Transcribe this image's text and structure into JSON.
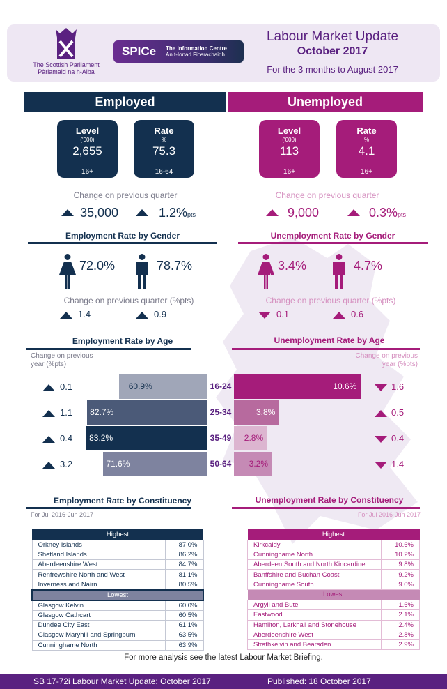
{
  "header": {
    "org_line1": "The Scottish Parliament",
    "org_line2": "Pàrlamaid na h-Alba",
    "spice_logo": "SPICe",
    "spice_line1": "The Information Centre",
    "spice_line2": "An t-Ionad Fiosrachaidh",
    "title": "Labour Market Update",
    "date": "October 2017",
    "period": "For the 3 months to August 2017"
  },
  "colors": {
    "navy": "#13304f",
    "magenta": "#a51c7a",
    "purple": "#5a2180",
    "header_bg": "#eee7f3"
  },
  "employed": {
    "heading": "Employed",
    "level": {
      "title": "Level",
      "unit": "('000)",
      "value": "2,655",
      "age": "16+"
    },
    "rate": {
      "title": "Rate",
      "unit": "%",
      "value": "75.3",
      "age": "16-64"
    },
    "change_label": "Change on previous quarter",
    "change_level": "35,000",
    "change_level_dir": "up",
    "change_rate": "1.2%",
    "change_rate_dir": "up",
    "pts": "pts",
    "gender_title": "Employment Rate by Gender",
    "female": "72.0%",
    "male": "78.7%",
    "gender_change_label": "Change on previous quarter (%pts)",
    "female_change": "1.4",
    "female_dir": "up",
    "male_change": "0.9",
    "male_dir": "up"
  },
  "unemployed": {
    "heading": "Unemployed",
    "level": {
      "title": "Level",
      "unit": "('000)",
      "value": "113",
      "age": "16+"
    },
    "rate": {
      "title": "Rate",
      "unit": "%",
      "value": "4.1",
      "age": "16+"
    },
    "change_label": "Change on previous quarter",
    "change_level": "9,000",
    "change_level_dir": "up",
    "change_rate": "0.3%",
    "change_rate_dir": "up",
    "pts": "pts",
    "gender_title": "Unemployment Rate by Gender",
    "female": "3.4%",
    "male": "4.7%",
    "gender_change_label": "Change on previous quarter (%pts)",
    "female_change": "0.1",
    "female_dir": "down",
    "male_change": "0.6",
    "male_dir": "up"
  },
  "age": {
    "emp_title": "Employment Rate by Age",
    "unemp_title": "Unemployment Rate by Age",
    "change_label_1": "Change on previous",
    "change_label_2": "year (%pts)",
    "groups": [
      "16-24",
      "25-34",
      "35-49",
      "50-64"
    ],
    "emp": [
      {
        "value": 60.9,
        "label": "60.9%",
        "change": "0.1",
        "dir": "up",
        "color": "#a0a6b8"
      },
      {
        "value": 82.7,
        "label": "82.7%",
        "change": "1.1",
        "dir": "up",
        "color": "#4b5a78"
      },
      {
        "value": 83.2,
        "label": "83.2%",
        "change": "0.4",
        "dir": "up",
        "color": "#13304f"
      },
      {
        "value": 71.6,
        "label": "71.6%",
        "change": "3.2",
        "dir": "up",
        "color": "#7e839f"
      }
    ],
    "unemp": [
      {
        "value": 10.6,
        "label": "10.6%",
        "change": "1.6",
        "dir": "down",
        "color": "#a51c7a"
      },
      {
        "value": 3.8,
        "label": "3.8%",
        "change": "0.5",
        "dir": "up",
        "color": "#b76a9e"
      },
      {
        "value": 2.8,
        "label": "2.8%",
        "change": "0.4",
        "dir": "down",
        "color": "#dcb5d0"
      },
      {
        "value": 3.2,
        "label": "3.2%",
        "change": "1.4",
        "dir": "down",
        "color": "#c58ab5"
      }
    ]
  },
  "constituency": {
    "emp_title": "Employment Rate by Constituency",
    "unemp_title": "Unemployment Rate by Constituency",
    "period": "For Jul 2016-Jun 2017",
    "highest_label": "Highest",
    "lowest_label": "Lowest",
    "emp_highest": [
      [
        "Orkney Islands",
        "87.0%"
      ],
      [
        "Shetland Islands",
        "86.2%"
      ],
      [
        "Aberdeenshire West",
        "84.7%"
      ],
      [
        "Renfrewshire North and West",
        "81.1%"
      ],
      [
        "Inverness and Nairn",
        "80.5%"
      ]
    ],
    "emp_lowest": [
      [
        "Glasgow Kelvin",
        "60.0%"
      ],
      [
        "Glasgow Cathcart",
        "60.5%"
      ],
      [
        "Dundee City East",
        "61.1%"
      ],
      [
        "Glasgow Maryhill and Springburn",
        "63.5%"
      ],
      [
        "Cunninghame North",
        "63.9%"
      ]
    ],
    "unemp_highest": [
      [
        "Kirkcaldy",
        "10.6%"
      ],
      [
        "Cunninghame North",
        "10.2%"
      ],
      [
        "Aberdeen South and North Kincardine",
        "9.8%"
      ],
      [
        "Banffshire and Buchan Coast",
        "9.2%"
      ],
      [
        "Cunninghame South",
        "9.0%"
      ]
    ],
    "unemp_lowest": [
      [
        "Argyll and Bute",
        "1.6%"
      ],
      [
        "Eastwood",
        "2.1%"
      ],
      [
        "Hamilton, Larkhall and Stonehouse",
        "2.4%"
      ],
      [
        "Aberdeenshire West",
        "2.8%"
      ],
      [
        "Strathkelvin and Bearsden",
        "2.9%"
      ]
    ]
  },
  "footer": {
    "note": "For more analysis see the latest Labour Market Briefing.",
    "ref": "SB 17-72i Labour Market Update: October 2017",
    "published": "Published: 18 October 2017"
  }
}
